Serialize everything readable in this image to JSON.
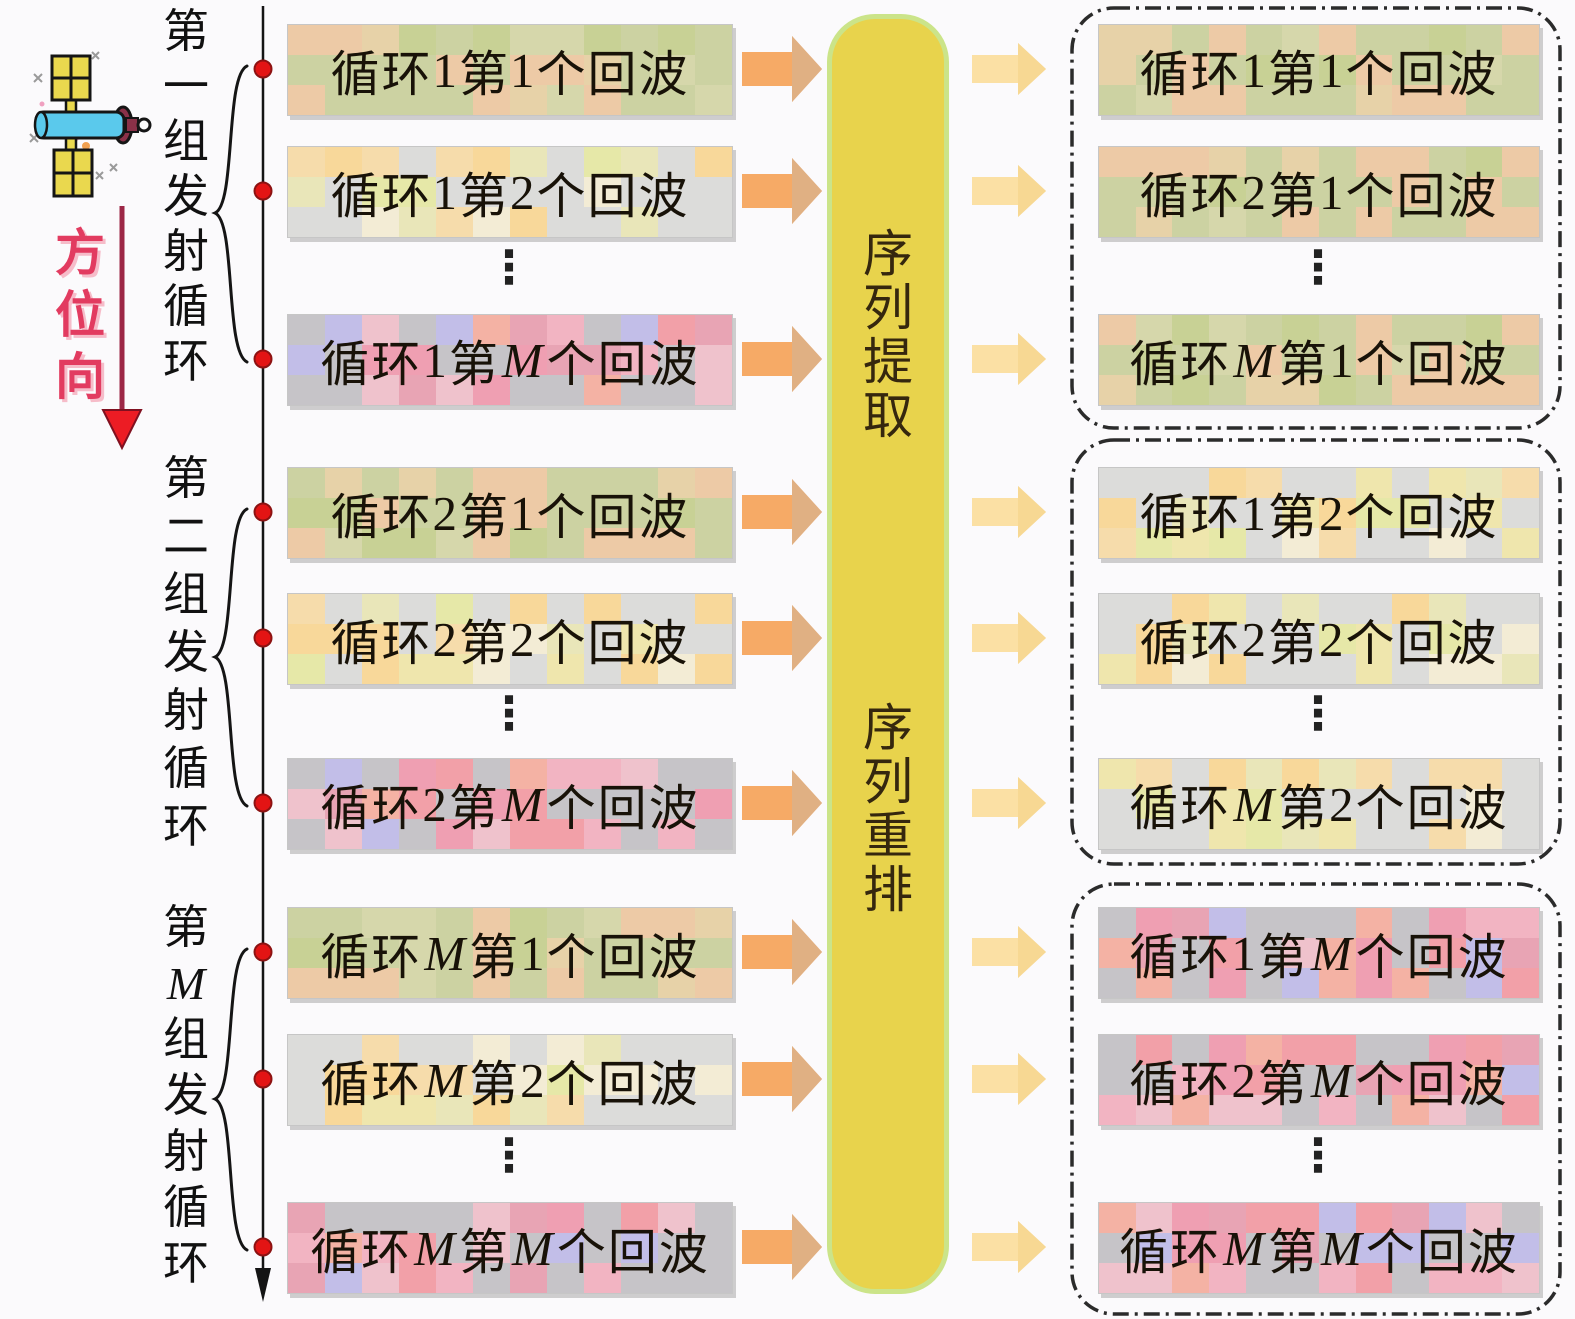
{
  "page_background": "#fbfafc",
  "azimuth": {
    "label": "方位向",
    "color": "#e23b60"
  },
  "axis": {
    "color": "#141414",
    "dot_color": "#e31414"
  },
  "left_panel": {
    "groups": [
      {
        "label": "第一组发射循环",
        "rows": [
          {
            "label": "循环1第1个回波",
            "variant": "a"
          },
          {
            "label": "循环1第2个回波",
            "variant": "b"
          },
          {
            "label": "循环1第M个回波",
            "variant": "c"
          }
        ]
      },
      {
        "label": "第二组发射循环",
        "rows": [
          {
            "label": "循环2第1个回波",
            "variant": "a"
          },
          {
            "label": "循环2第2个回波",
            "variant": "b"
          },
          {
            "label": "循环2第M个回波",
            "variant": "c"
          }
        ]
      },
      {
        "label": "第M组发射循环",
        "rows": [
          {
            "label": "循环M第1个回波",
            "variant": "a"
          },
          {
            "label": "循环M第2个回波",
            "variant": "b"
          },
          {
            "label": "循环M第M个回波",
            "variant": "c"
          }
        ]
      }
    ]
  },
  "processor": {
    "top_label": "序列提取",
    "bottom_label": "序列重排",
    "fill": "#e8d34c",
    "border": "#cbe489",
    "text_color": "#35270e"
  },
  "right_panel": {
    "groups": [
      {
        "rows": [
          {
            "label": "循环1第1个回波",
            "variant": "a"
          },
          {
            "label": "循环2第1个回波",
            "variant": "a"
          },
          {
            "label": "循环M第1个回波",
            "variant": "a"
          }
        ]
      },
      {
        "rows": [
          {
            "label": "循环1第2个回波",
            "variant": "b"
          },
          {
            "label": "循环2第2个回波",
            "variant": "b"
          },
          {
            "label": "循环M第2个回波",
            "variant": "b"
          }
        ]
      },
      {
        "rows": [
          {
            "label": "循环1第M个回波",
            "variant": "c"
          },
          {
            "label": "循环2第M个回波",
            "variant": "c"
          },
          {
            "label": "循环M第M个回波",
            "variant": "c"
          }
        ]
      }
    ]
  },
  "arrows": {
    "left_fill": "#f6aa66",
    "left_head": "#e0b083",
    "right_fill": "#fbe0a4",
    "right_head": "#f7d893"
  },
  "palettes": {
    "a": [
      "#ccd2a2",
      "#ccd2a2",
      "#ccd2a2",
      "#ccd2a2",
      "#edcaa6",
      "#edcaa6",
      "#d6d7ab",
      "#e7d2a8",
      "#c8d195",
      "#edcaa6"
    ],
    "b": [
      "#dcdcda",
      "#dcdcda",
      "#dcdcda",
      "#f6dcab",
      "#efe6ad",
      "#f3ecd5",
      "#dcdcda",
      "#e9e6b9",
      "#f8d89a",
      "#e6e8a8"
    ],
    "c": [
      "#c6c4c8",
      "#c6c4c8",
      "#f2b4c2",
      "#ef9fb2",
      "#c2bee8",
      "#f4b2a4",
      "#efc2cc",
      "#c6c4c8",
      "#f2a0a8",
      "#e8a4b4"
    ]
  },
  "ellipsis_symbol": "⋮"
}
